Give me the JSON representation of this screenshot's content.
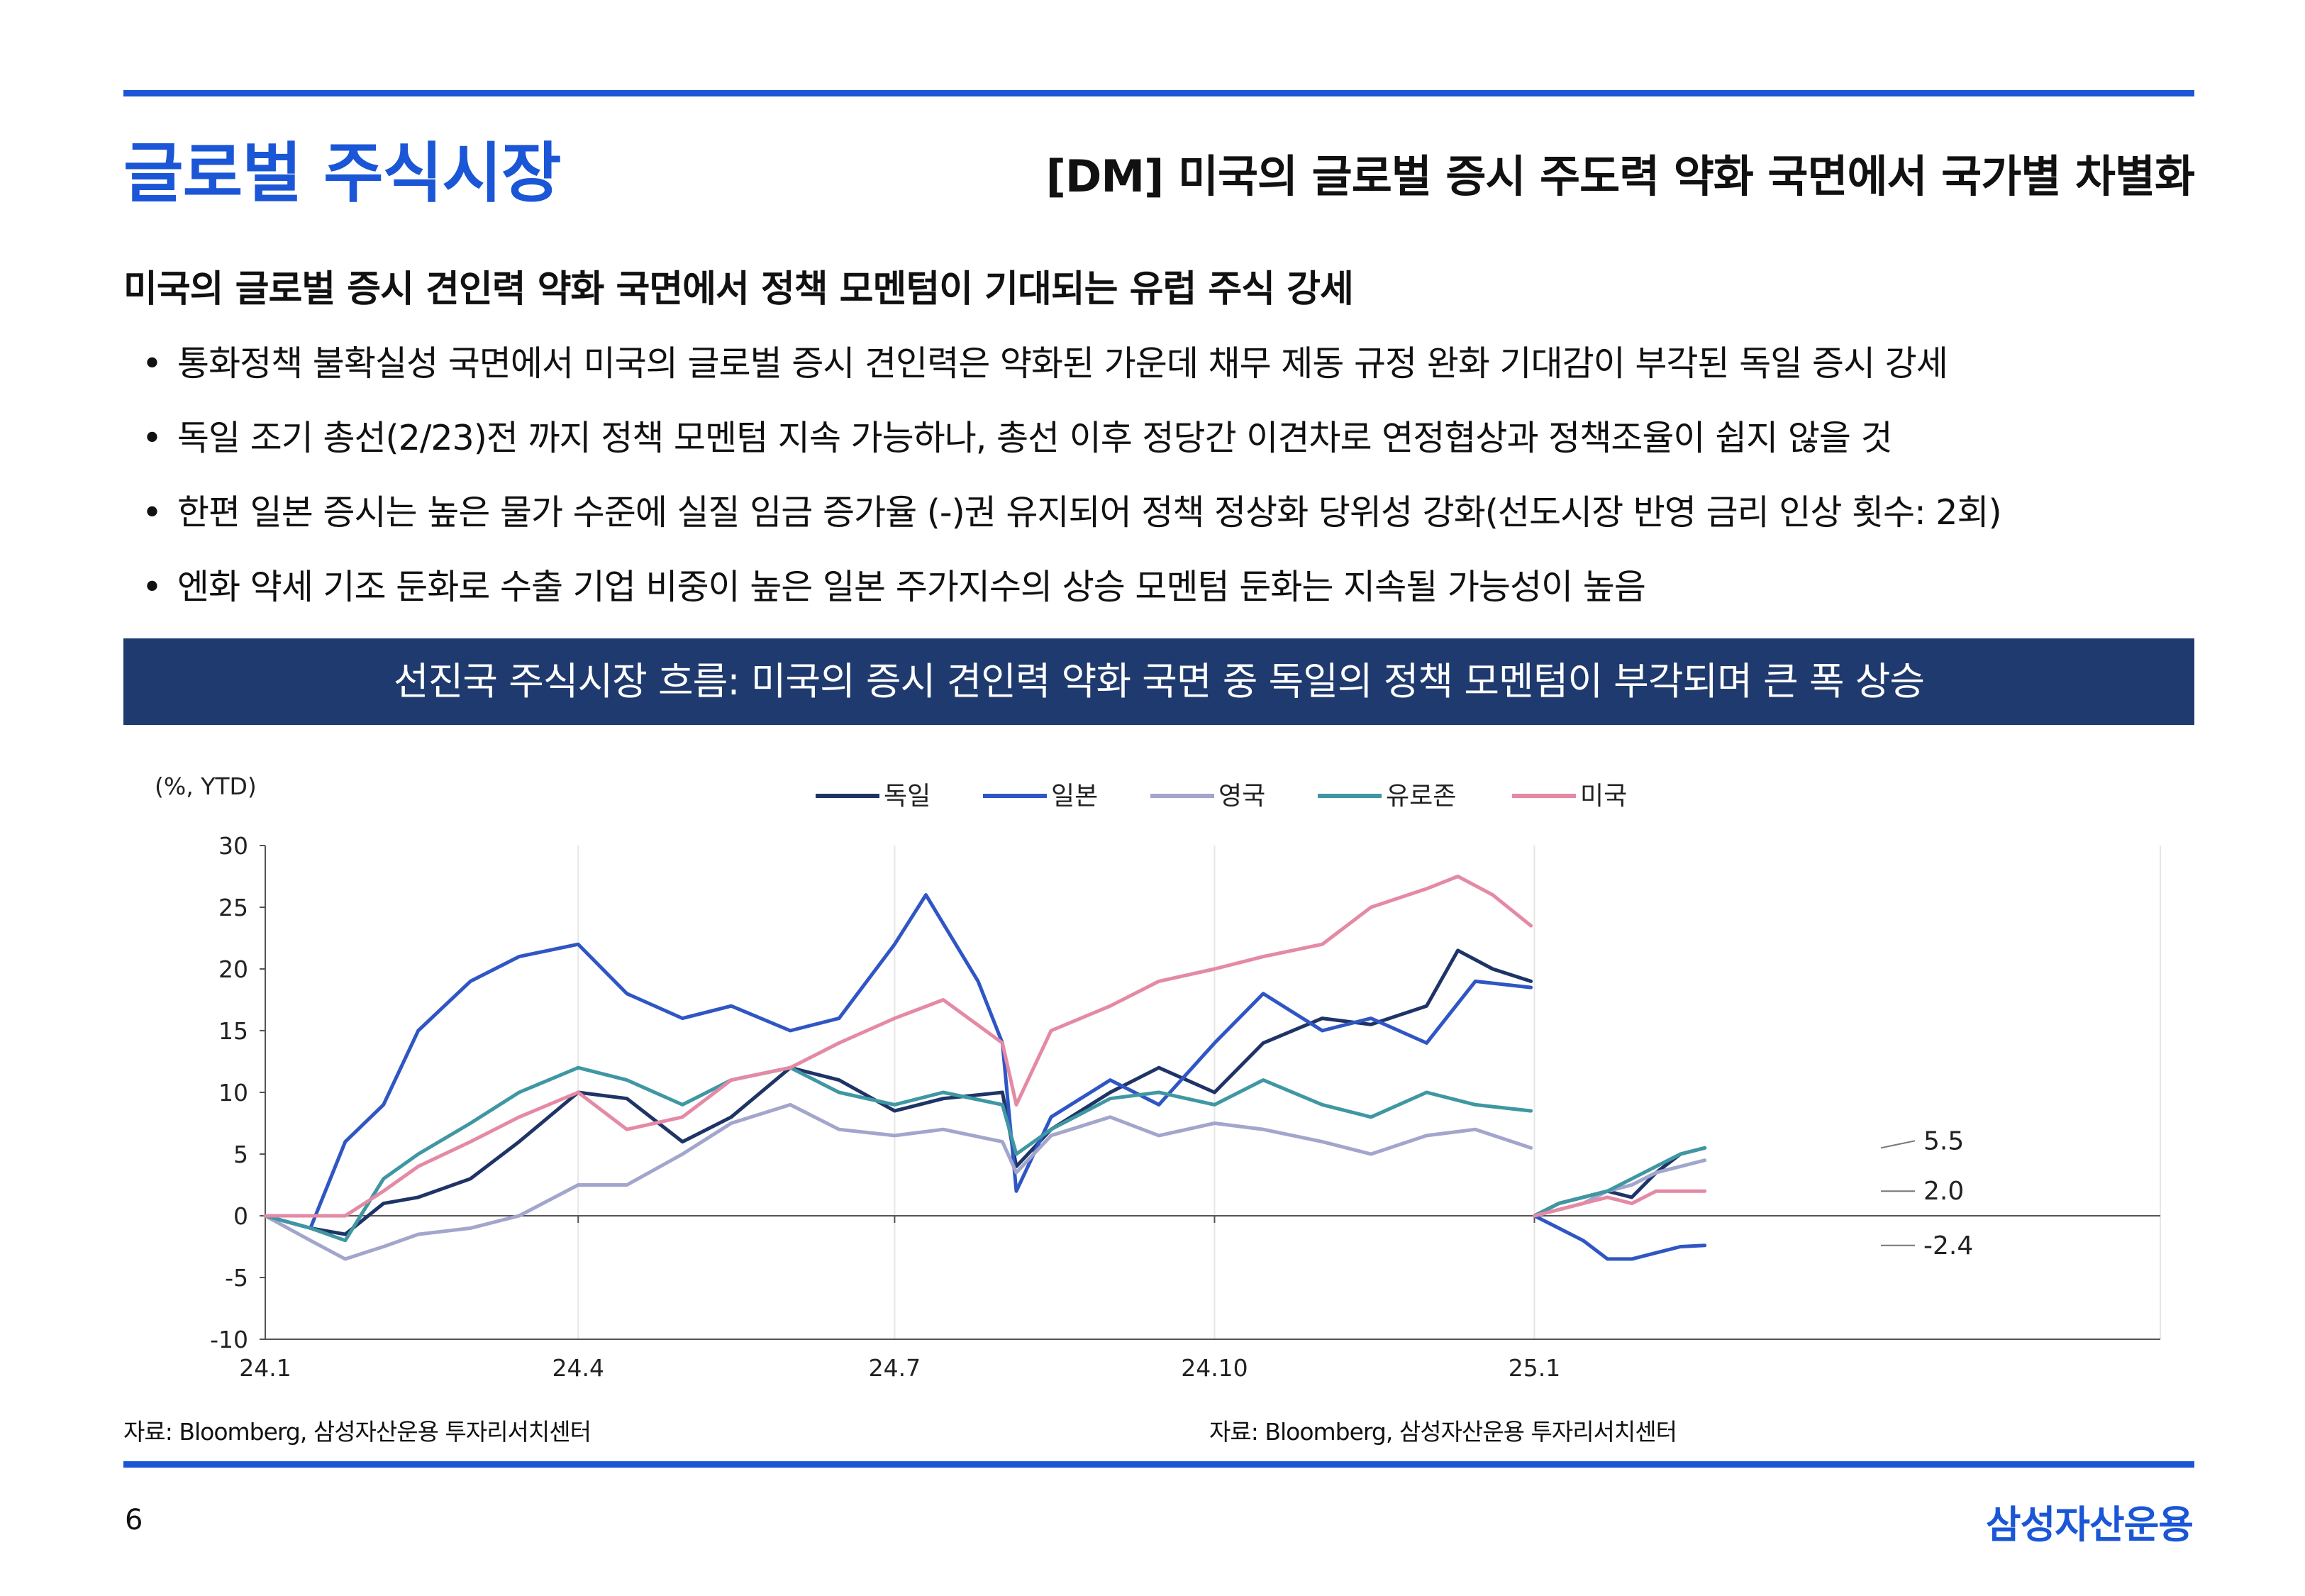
{
  "header": {
    "title": "글로벌 주식시장",
    "subtitle": "[DM] 미국의 글로벌 증시 주도력 약화 국면에서 국가별 차별화"
  },
  "section_heading": "미국의 글로벌 증시 견인력 약화 국면에서 정책 모멘텀이 기대되는 유럽 주식 강세",
  "bullets": [
    "통화정책 불확실성 국면에서 미국의 글로벌 증시 견인력은 약화된 가운데 채무 제동 규정 완화 기대감이 부각된 독일 증시 강세",
    "독일 조기 총선(2/23)전 까지 정책 모멘텀 지속 가능하나, 총선 이후 정당간 이견차로 연정협상과 정책조율이 쉽지 않을 것",
    "한편 일본 증시는 높은 물가 수준에 실질 임금 증가율 (-)권 유지되어 정책 정상화 당위성 강화(선도시장 반영 금리 인상 횟수: 2회)",
    "엔화 약세 기조 둔화로 수출 기업 비중이 높은 일본 주가지수의 상승 모멘텀 둔화는 지속될 가능성이 높음"
  ],
  "banner": "선진국 주식시장 흐름: 미국의 증시 견인력 약화 국면 중 독일의 정책 모멘텀이 부각되며 큰 폭 상승",
  "source_left": "자료: Bloomberg, 삼성자산운용 투자리서치센터",
  "source_right": "자료: Bloomberg, 삼성자산운용 투자리서치센터",
  "page_number": "6",
  "logo": "삼성자산운용",
  "chart_data": {
    "type": "line",
    "unit_label": "(%, YTD)",
    "ylim": [
      -10,
      30
    ],
    "y_ticks": [
      -10,
      -5,
      0,
      5,
      10,
      15,
      20,
      25,
      30
    ],
    "x_range": [
      "2024-01-02",
      "2025-06-30"
    ],
    "x_ticks": [
      {
        "date": "2024-01-02",
        "label": "24.1"
      },
      {
        "date": "2024-04-01",
        "label": "24.4"
      },
      {
        "date": "2024-07-01",
        "label": "24.7"
      },
      {
        "date": "2024-10-01",
        "label": "24.10"
      },
      {
        "date": "2025-01-01",
        "label": "25.1"
      }
    ],
    "vertical_gridlines": true,
    "legend_position": "top-center",
    "end_labels": [
      "5.5",
      "2.0",
      "-2.4"
    ],
    "series": [
      {
        "name": "독일",
        "color": "#1f3466",
        "segments": [
          {
            "x": [
              "2024-01-02",
              "2024-01-15",
              "2024-01-25",
              "2024-02-05",
              "2024-02-15",
              "2024-03-01",
              "2024-03-15",
              "2024-04-01",
              "2024-04-15",
              "2024-05-01",
              "2024-05-15",
              "2024-06-01",
              "2024-06-15",
              "2024-07-01",
              "2024-07-15",
              "2024-08-01",
              "2024-08-05",
              "2024-08-15",
              "2024-09-01",
              "2024-09-15",
              "2024-10-01",
              "2024-10-15",
              "2024-11-01",
              "2024-11-15",
              "2024-12-01",
              "2024-12-10",
              "2024-12-20",
              "2024-12-31"
            ],
            "y": [
              0,
              -1,
              -1.5,
              1,
              1.5,
              3,
              6,
              10,
              9.5,
              6,
              8,
              12,
              11,
              8.5,
              9.5,
              10,
              4,
              7,
              10,
              12,
              10,
              14,
              16,
              15.5,
              17,
              21.5,
              20,
              19
            ]
          },
          {
            "x": [
              "2025-01-01",
              "2025-01-08",
              "2025-01-15",
              "2025-01-22",
              "2025-01-29",
              "2025-02-05",
              "2025-02-12",
              "2025-02-19"
            ],
            "y": [
              0,
              1.0,
              1.5,
              2.0,
              1.5,
              3.5,
              5.0,
              5.5
            ]
          }
        ]
      },
      {
        "name": "일본",
        "color": "#2f56c4",
        "segments": [
          {
            "x": [
              "2024-01-02",
              "2024-01-15",
              "2024-01-25",
              "2024-02-05",
              "2024-02-15",
              "2024-03-01",
              "2024-03-15",
              "2024-04-01",
              "2024-04-15",
              "2024-05-01",
              "2024-05-15",
              "2024-06-01",
              "2024-06-15",
              "2024-07-01",
              "2024-07-10",
              "2024-07-25",
              "2024-08-01",
              "2024-08-05",
              "2024-08-15",
              "2024-09-01",
              "2024-09-15",
              "2024-10-01",
              "2024-10-15",
              "2024-11-01",
              "2024-11-15",
              "2024-12-01",
              "2024-12-15",
              "2024-12-31"
            ],
            "y": [
              0,
              -1,
              6,
              9,
              15,
              19,
              21,
              22,
              18,
              16,
              17,
              15,
              16,
              22,
              26,
              19,
              14,
              2,
              8,
              11,
              9,
              14,
              18,
              15,
              16,
              14,
              19,
              18.5
            ]
          },
          {
            "x": [
              "2025-01-01",
              "2025-01-08",
              "2025-01-15",
              "2025-01-22",
              "2025-01-29",
              "2025-02-05",
              "2025-02-12",
              "2025-02-19"
            ],
            "y": [
              0,
              -1.0,
              -2.0,
              -3.5,
              -3.5,
              -3.0,
              -2.5,
              -2.4
            ]
          }
        ]
      },
      {
        "name": "영국",
        "color": "#a2a6cc",
        "segments": [
          {
            "x": [
              "2024-01-02",
              "2024-01-15",
              "2024-01-25",
              "2024-02-05",
              "2024-02-15",
              "2024-03-01",
              "2024-03-15",
              "2024-04-01",
              "2024-04-15",
              "2024-05-01",
              "2024-05-15",
              "2024-06-01",
              "2024-06-15",
              "2024-07-01",
              "2024-07-15",
              "2024-08-01",
              "2024-08-05",
              "2024-08-15",
              "2024-09-01",
              "2024-09-15",
              "2024-10-01",
              "2024-10-15",
              "2024-11-01",
              "2024-11-15",
              "2024-12-01",
              "2024-12-15",
              "2024-12-31"
            ],
            "y": [
              0,
              -2,
              -3.5,
              -2.5,
              -1.5,
              -1,
              0,
              2.5,
              2.5,
              5,
              7.5,
              9,
              7,
              6.5,
              7,
              6,
              3.5,
              6.5,
              8,
              6.5,
              7.5,
              7,
              6,
              5,
              6.5,
              7,
              5.5
            ]
          },
          {
            "x": [
              "2025-01-01",
              "2025-01-08",
              "2025-01-15",
              "2025-01-22",
              "2025-01-29",
              "2025-02-05",
              "2025-02-12",
              "2025-02-19"
            ],
            "y": [
              0,
              0.5,
              1.0,
              2.0,
              2.5,
              3.5,
              4.0,
              4.5
            ]
          }
        ]
      },
      {
        "name": "유로존",
        "color": "#3f97a3",
        "segments": [
          {
            "x": [
              "2024-01-02",
              "2024-01-15",
              "2024-01-25",
              "2024-02-05",
              "2024-02-15",
              "2024-03-01",
              "2024-03-15",
              "2024-04-01",
              "2024-04-15",
              "2024-05-01",
              "2024-05-15",
              "2024-06-01",
              "2024-06-15",
              "2024-07-01",
              "2024-07-15",
              "2024-08-01",
              "2024-08-05",
              "2024-08-15",
              "2024-09-01",
              "2024-09-15",
              "2024-10-01",
              "2024-10-15",
              "2024-11-01",
              "2024-11-15",
              "2024-12-01",
              "2024-12-15",
              "2024-12-31"
            ],
            "y": [
              0,
              -1,
              -2,
              3,
              5,
              7.5,
              10,
              12,
              11,
              9,
              11,
              12,
              10,
              9,
              10,
              9,
              5,
              7,
              9.5,
              10,
              9,
              11,
              9,
              8,
              10,
              9,
              8.5
            ]
          },
          {
            "x": [
              "2025-01-01",
              "2025-01-08",
              "2025-01-15",
              "2025-01-22",
              "2025-01-29",
              "2025-02-05",
              "2025-02-12",
              "2025-02-19"
            ],
            "y": [
              0,
              1.0,
              1.5,
              2.0,
              3.0,
              4.0,
              5.0,
              5.5
            ]
          }
        ]
      },
      {
        "name": "미국",
        "color": "#e48aa4",
        "segments": [
          {
            "x": [
              "2024-01-02",
              "2024-01-15",
              "2024-01-25",
              "2024-02-05",
              "2024-02-15",
              "2024-03-01",
              "2024-03-15",
              "2024-04-01",
              "2024-04-15",
              "2024-05-01",
              "2024-05-15",
              "2024-06-01",
              "2024-06-15",
              "2024-07-01",
              "2024-07-15",
              "2024-08-01",
              "2024-08-05",
              "2024-08-15",
              "2024-09-01",
              "2024-09-15",
              "2024-10-01",
              "2024-10-15",
              "2024-11-01",
              "2024-11-15",
              "2024-12-01",
              "2024-12-10",
              "2024-12-20",
              "2024-12-31"
            ],
            "y": [
              0,
              0,
              0,
              2,
              4,
              6,
              8,
              10,
              7,
              8,
              11,
              12,
              14,
              16,
              17.5,
              14,
              9,
              15,
              17,
              19,
              20,
              21,
              22,
              25,
              26.5,
              27.5,
              26,
              23.5
            ]
          },
          {
            "x": [
              "2025-01-01",
              "2025-01-08",
              "2025-01-15",
              "2025-01-22",
              "2025-01-29",
              "2025-02-05",
              "2025-02-12",
              "2025-02-19"
            ],
            "y": [
              0,
              0.5,
              1.0,
              1.5,
              1.0,
              2.0,
              2.0,
              2.0
            ]
          }
        ]
      }
    ]
  }
}
